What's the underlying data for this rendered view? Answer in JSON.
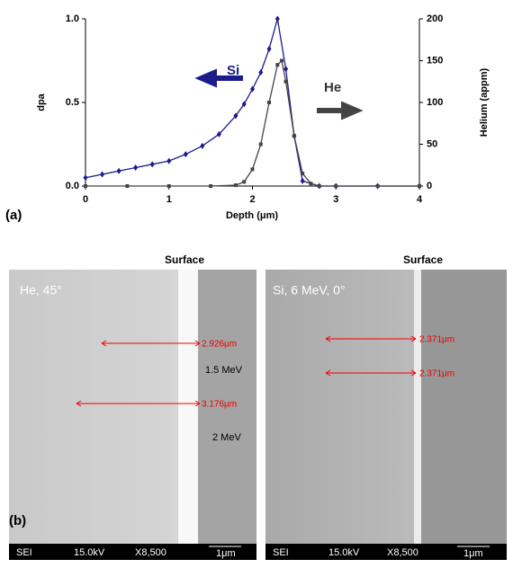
{
  "chart_data": {
    "type": "line",
    "panel_label": "(a)",
    "xlabel": "Depth (μm)",
    "ylabel": "dpa",
    "y2label": "Helium (appm)",
    "xlim": [
      0,
      4
    ],
    "xticks": [
      0,
      1,
      2,
      3,
      4
    ],
    "ylim": [
      0,
      1
    ],
    "yticks": [
      {
        "value": 0,
        "label": "0.0"
      },
      {
        "value": 0.5,
        "label": "0.5"
      },
      {
        "value": 1,
        "label": "1.0"
      }
    ],
    "y2lim": [
      0,
      200
    ],
    "y2ticks": [
      0,
      50,
      100,
      150,
      200
    ],
    "series": [
      {
        "name": "Si",
        "color": "#1c1c8a",
        "marker": "diamond",
        "x": [
          0,
          0.2,
          0.4,
          0.6,
          0.8,
          1.0,
          1.2,
          1.4,
          1.6,
          1.8,
          1.9,
          2.0,
          2.1,
          2.2,
          2.3,
          2.4,
          2.5,
          2.6,
          2.8,
          3.0,
          3.5,
          4.0
        ],
        "values": [
          0.05,
          0.07,
          0.09,
          0.11,
          0.13,
          0.15,
          0.19,
          0.24,
          0.31,
          0.42,
          0.49,
          0.58,
          0.68,
          0.82,
          1.0,
          0.7,
          0.3,
          0.03,
          0,
          0,
          0,
          0
        ]
      },
      {
        "name": "He",
        "color": "#444444",
        "marker": "square",
        "axis": "y2",
        "x": [
          0,
          0.5,
          1.0,
          1.5,
          1.8,
          1.9,
          2.0,
          2.1,
          2.2,
          2.3,
          2.35,
          2.4,
          2.5,
          2.6,
          2.7,
          2.8,
          3.0,
          3.5,
          4.0
        ],
        "values": [
          0,
          0,
          0,
          0,
          1,
          5,
          20,
          50,
          100,
          145,
          150,
          125,
          60,
          15,
          3,
          0,
          0,
          0,
          0
        ]
      }
    ]
  },
  "panel_b": {
    "label": "(b)",
    "images": [
      {
        "surface_label": "Surface",
        "title": "He, 45°",
        "measurements": [
          "2.926μm",
          "3.176μm"
        ],
        "annotations": [
          "1.5 MeV",
          "2 MeV"
        ],
        "footer": [
          "SEI",
          "15.0kV",
          "X8,500",
          "1μm"
        ]
      },
      {
        "surface_label": "Surface",
        "title": "Si, 6 MeV, 0°",
        "measurements": [
          "2.371μm",
          "2.371μm"
        ],
        "footer": [
          "SEI",
          "15.0kV",
          "X8,500",
          "1μm"
        ]
      }
    ]
  }
}
